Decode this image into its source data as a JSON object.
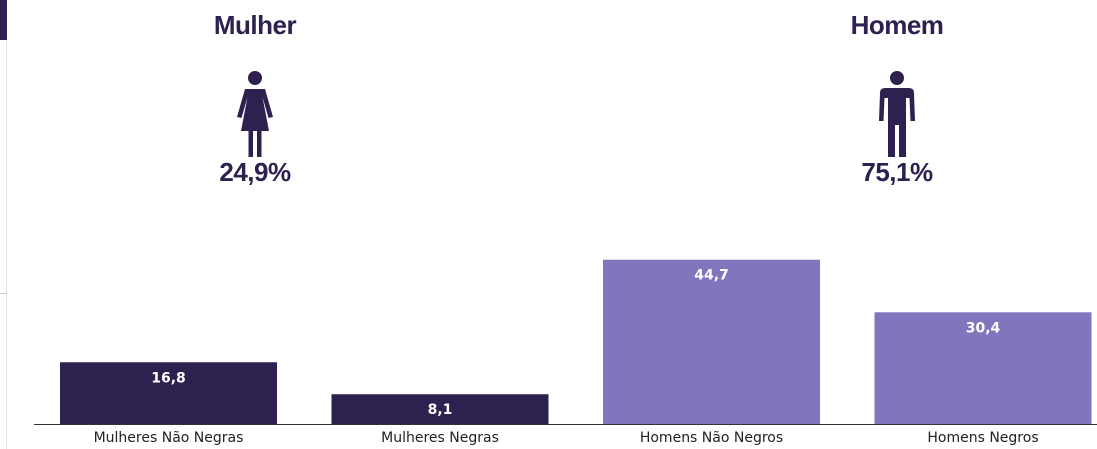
{
  "colors": {
    "dark": "#2e2150",
    "light": "#8175bd",
    "axis": "#333333"
  },
  "panels": {
    "female": {
      "title": "Mulher",
      "percent": "24,9%",
      "icon": "woman-icon"
    },
    "male": {
      "title": "Homem",
      "percent": "75,1%",
      "icon": "man-icon"
    }
  },
  "chart_data": {
    "type": "bar",
    "categories": [
      "Mulheres Não Negras",
      "Mulheres Negras",
      "Homens Não Negros",
      "Homens Negros"
    ],
    "values": [
      16.8,
      8.1,
      44.7,
      30.4
    ],
    "value_labels": [
      "16,8",
      "8,1",
      "44,7",
      "30,4"
    ],
    "bar_colors": [
      "#2e2150",
      "#2e2150",
      "#8175bd",
      "#8175bd"
    ],
    "title": "",
    "xlabel": "",
    "ylabel": "",
    "grid": false,
    "legend": "none"
  }
}
